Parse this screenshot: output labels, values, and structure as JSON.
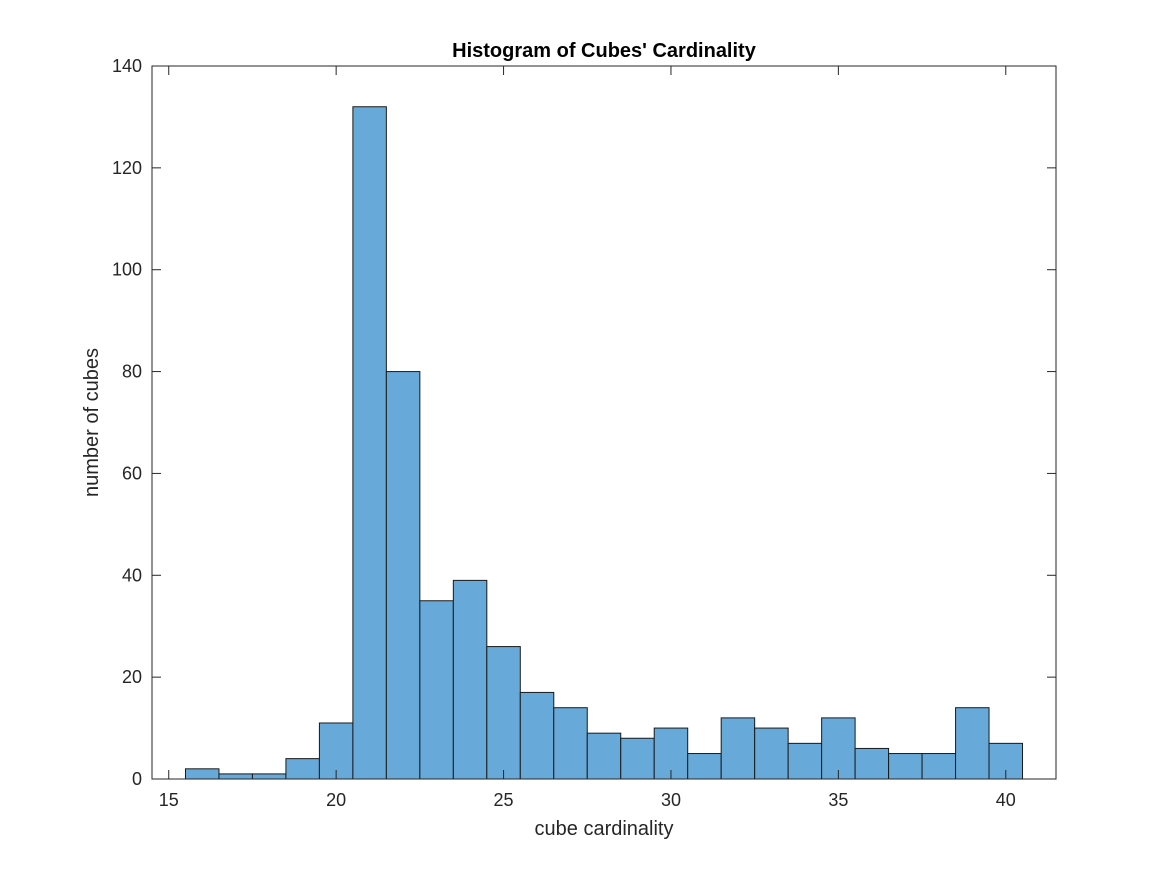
{
  "chart_data": {
    "type": "bar",
    "title": "Histogram of Cubes' Cardinality",
    "xlabel": "cube cardinality",
    "ylabel": "number of cubes",
    "xlim": [
      14.5,
      41.5
    ],
    "ylim": [
      0,
      140
    ],
    "xticks": [
      15,
      20,
      25,
      30,
      35,
      40
    ],
    "yticks": [
      0,
      20,
      40,
      60,
      80,
      100,
      120,
      140
    ],
    "bin_width": 1,
    "bin_centers": [
      16,
      17,
      18,
      19,
      20,
      21,
      22,
      23,
      24,
      25,
      26,
      27,
      28,
      29,
      30,
      31,
      32,
      33,
      34,
      35,
      36,
      37,
      38,
      39,
      40
    ],
    "values": [
      2,
      1,
      1,
      4,
      11,
      132,
      80,
      35,
      39,
      26,
      17,
      14,
      9,
      8,
      10,
      5,
      12,
      10,
      7,
      12,
      6,
      5,
      5,
      14,
      7
    ],
    "grid": false,
    "bar_color": "#67a9d9",
    "edge_color": "#1a1a1a"
  }
}
